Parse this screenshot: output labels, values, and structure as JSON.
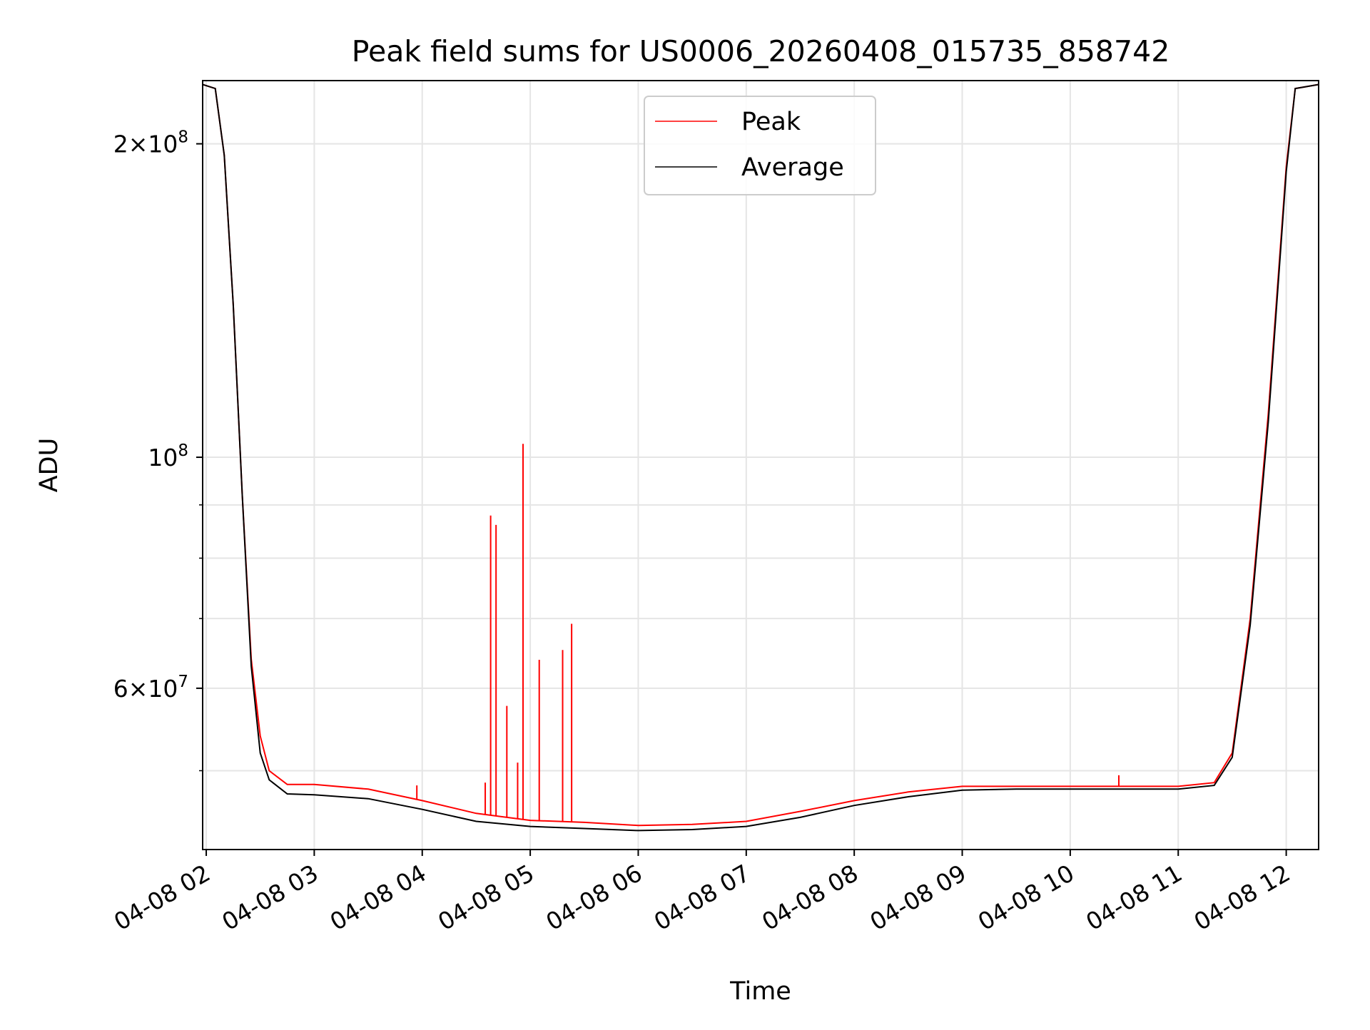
{
  "chart_data": {
    "type": "line",
    "title": "Peak field sums for US0006_20260408_015735_858742",
    "xlabel": "Time",
    "ylabel": "ADU",
    "y_scale": "log",
    "xlim": [
      "2026-04-08 01:58",
      "2026-04-08 12:18"
    ],
    "ylim": [
      42000000,
      230000000
    ],
    "grid": true,
    "legend_position": "upper center",
    "x_ticks": [
      {
        "value": "2026-04-08 02:00",
        "label": "04-08 02"
      },
      {
        "value": "2026-04-08 03:00",
        "label": "04-08 03"
      },
      {
        "value": "2026-04-08 04:00",
        "label": "04-08 04"
      },
      {
        "value": "2026-04-08 05:00",
        "label": "04-08 05"
      },
      {
        "value": "2026-04-08 06:00",
        "label": "04-08 06"
      },
      {
        "value": "2026-04-08 07:00",
        "label": "04-08 07"
      },
      {
        "value": "2026-04-08 08:00",
        "label": "04-08 08"
      },
      {
        "value": "2026-04-08 09:00",
        "label": "04-08 09"
      },
      {
        "value": "2026-04-08 10:00",
        "label": "04-08 10"
      },
      {
        "value": "2026-04-08 11:00",
        "label": "04-08 11"
      },
      {
        "value": "2026-04-08 12:00",
        "label": "04-08 12"
      }
    ],
    "y_ticks": [
      {
        "value": 200000000,
        "mantissa": "2",
        "exponent": "8"
      },
      {
        "value": 100000000,
        "mantissa": "",
        "exponent": "8"
      },
      {
        "value": 60000000,
        "mantissa": "6",
        "exponent": "7"
      }
    ],
    "y_minor_ticks": [
      50000000,
      70000000,
      80000000,
      90000000
    ],
    "colors": {
      "peak": "#ff0000",
      "average": "#000000",
      "grid": "#e5e5e5"
    },
    "series": [
      {
        "name": "Peak",
        "color": "#ff0000",
        "x": [
          "2026-04-08 01:58",
          "2026-04-08 02:05",
          "2026-04-08 02:10",
          "2026-04-08 02:15",
          "2026-04-08 02:20",
          "2026-04-08 02:25",
          "2026-04-08 02:30",
          "2026-04-08 02:35",
          "2026-04-08 02:45",
          "2026-04-08 03:00",
          "2026-04-08 03:30",
          "2026-04-08 04:00",
          "2026-04-08 04:30",
          "2026-04-08 05:00",
          "2026-04-08 05:30",
          "2026-04-08 06:00",
          "2026-04-08 06:30",
          "2026-04-08 07:00",
          "2026-04-08 07:30",
          "2026-04-08 08:00",
          "2026-04-08 08:30",
          "2026-04-08 09:00",
          "2026-04-08 09:30",
          "2026-04-08 10:00",
          "2026-04-08 10:30",
          "2026-04-08 11:00",
          "2026-04-08 11:20",
          "2026-04-08 11:30",
          "2026-04-08 11:40",
          "2026-04-08 11:50",
          "2026-04-08 12:00",
          "2026-04-08 12:05",
          "2026-04-08 12:18"
        ],
        "y": [
          228000000,
          226000000,
          195000000,
          140000000,
          92000000,
          64000000,
          54000000,
          50000000,
          48500000,
          48500000,
          48000000,
          46800000,
          45500000,
          44800000,
          44600000,
          44300000,
          44400000,
          44700000,
          45700000,
          46800000,
          47700000,
          48300000,
          48300000,
          48300000,
          48300000,
          48300000,
          48700000,
          52000000,
          70000000,
          110000000,
          190000000,
          226000000,
          228000000
        ]
      },
      {
        "name": "Average",
        "color": "#000000",
        "x": [
          "2026-04-08 01:58",
          "2026-04-08 02:05",
          "2026-04-08 02:10",
          "2026-04-08 02:15",
          "2026-04-08 02:20",
          "2026-04-08 02:25",
          "2026-04-08 02:30",
          "2026-04-08 02:35",
          "2026-04-08 02:45",
          "2026-04-08 03:00",
          "2026-04-08 03:30",
          "2026-04-08 04:00",
          "2026-04-08 04:30",
          "2026-04-08 05:00",
          "2026-04-08 05:30",
          "2026-04-08 06:00",
          "2026-04-08 06:30",
          "2026-04-08 07:00",
          "2026-04-08 07:30",
          "2026-04-08 08:00",
          "2026-04-08 08:30",
          "2026-04-08 09:00",
          "2026-04-08 09:30",
          "2026-04-08 10:00",
          "2026-04-08 10:30",
          "2026-04-08 11:00",
          "2026-04-08 11:20",
          "2026-04-08 11:30",
          "2026-04-08 11:40",
          "2026-04-08 11:50",
          "2026-04-08 12:00",
          "2026-04-08 12:05",
          "2026-04-08 12:18"
        ],
        "y": [
          228000000,
          226000000,
          195000000,
          140000000,
          92000000,
          63000000,
          52000000,
          49000000,
          47500000,
          47400000,
          47000000,
          45900000,
          44700000,
          44200000,
          44000000,
          43800000,
          43900000,
          44200000,
          45100000,
          46300000,
          47200000,
          47900000,
          48000000,
          48000000,
          48000000,
          48000000,
          48400000,
          51500000,
          69000000,
          108000000,
          188000000,
          226000000,
          228000000
        ]
      }
    ],
    "peak_spikes": [
      {
        "x": "2026-04-08 04:35",
        "y": 48700000
      },
      {
        "x": "2026-04-08 04:38",
        "y": 87900000
      },
      {
        "x": "2026-04-08 04:41",
        "y": 86100000
      },
      {
        "x": "2026-04-08 04:47",
        "y": 57700000
      },
      {
        "x": "2026-04-08 04:53",
        "y": 50900000
      },
      {
        "x": "2026-04-08 04:56",
        "y": 103000000
      },
      {
        "x": "2026-04-08 05:05",
        "y": 63900000
      },
      {
        "x": "2026-04-08 05:18",
        "y": 65300000
      },
      {
        "x": "2026-04-08 05:23",
        "y": 69200000
      },
      {
        "x": "2026-04-08 03:57",
        "y": 48400000
      },
      {
        "x": "2026-04-08 10:27",
        "y": 49500000
      }
    ]
  }
}
